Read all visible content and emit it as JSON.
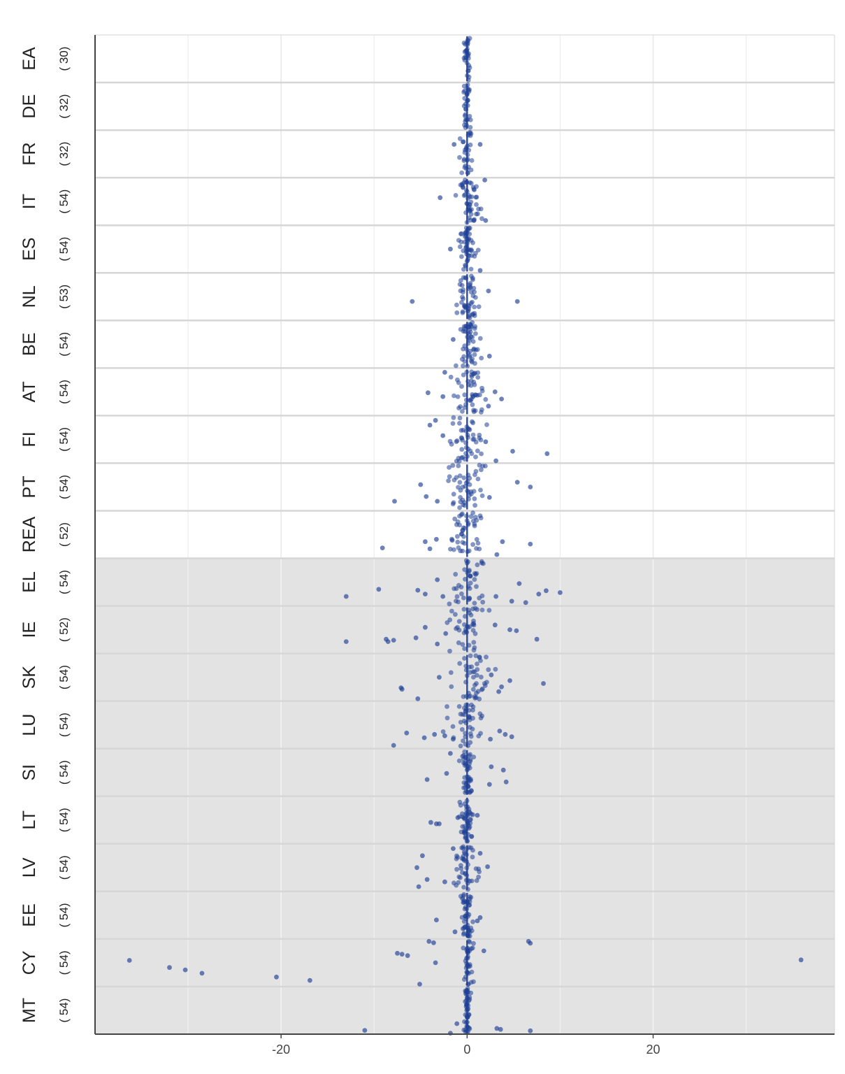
{
  "colors": {
    "point": "#1f3f95",
    "zero_line": "#1f3f95",
    "shaded_panel": "#e3e3e3",
    "grid_on_white": "#e9e9e9",
    "grid_on_gray": "#f3f3f3",
    "panel_separator": "#d6d6d6",
    "axis": "#444444"
  },
  "chart_data": {
    "type": "scatter",
    "orientation": "horizontal strips",
    "title": "",
    "xlabel": "",
    "ylabel": "",
    "xlim": [
      -40,
      39.5
    ],
    "x_ticks": [
      -20,
      0,
      20
    ],
    "x_tick_labels": [
      "-20",
      "0",
      "20"
    ],
    "grid": true,
    "legend": "none",
    "shaded_from_group": "EL",
    "groups": [
      {
        "label": "EA",
        "count": "( 30)",
        "outliers": []
      },
      {
        "label": "DE",
        "count": "( 32)",
        "outliers": []
      },
      {
        "label": "FR",
        "count": "( 32)",
        "outliers": [
          [
            -1.4,
            0.3
          ],
          [
            1.4,
            0.3
          ]
        ]
      },
      {
        "label": "IT",
        "count": "( 54)",
        "outliers": [
          [
            -2.9,
            0.42
          ],
          [
            1.9,
            0.05
          ],
          [
            2.0,
            0.9
          ]
        ]
      },
      {
        "label": "ES",
        "count": "( 54)",
        "outliers": [
          [
            -1.8,
            0.5
          ],
          [
            1.4,
            0.95
          ]
        ]
      },
      {
        "label": "NL",
        "count": "( 53)",
        "outliers": [
          [
            -5.9,
            0.6
          ],
          [
            5.4,
            0.6
          ],
          [
            2.3,
            0.38
          ]
        ]
      },
      {
        "label": "BE",
        "count": "( 54)",
        "outliers": [
          [
            -1.5,
            0.4
          ],
          [
            2.4,
            0.75
          ]
        ]
      },
      {
        "label": "AT",
        "count": "( 54)",
        "outliers": [
          [
            -4.2,
            0.52
          ],
          [
            -2.4,
            0.09
          ],
          [
            -2.6,
            0.6
          ],
          [
            3.7,
            0.65
          ],
          [
            2.3,
            0.8
          ],
          [
            3.0,
            0.5
          ]
        ]
      },
      {
        "label": "FI",
        "count": "( 54)",
        "outliers": [
          [
            8.6,
            0.8
          ],
          [
            4.9,
            0.75
          ],
          [
            -3.4,
            0.1
          ],
          [
            -4.0,
            0.2
          ],
          [
            -2.6,
            0.42
          ],
          [
            3.1,
            0.95
          ],
          [
            2.0,
            0.55
          ]
        ]
      },
      {
        "label": "PT",
        "count": "( 54)",
        "outliers": [
          [
            -7.8,
            0.8
          ],
          [
            -5.0,
            0.45
          ],
          [
            -4.4,
            0.7
          ],
          [
            5.4,
            0.4
          ],
          [
            6.8,
            0.5
          ],
          [
            2.4,
            0.72
          ],
          [
            -3.2,
            0.8
          ]
        ]
      },
      {
        "label": "REA",
        "count": "( 52)",
        "outliers": [
          [
            -9.1,
            0.78
          ],
          [
            -4.5,
            0.65
          ],
          [
            6.8,
            0.7
          ],
          [
            3.8,
            0.65
          ],
          [
            3.2,
            0.92
          ],
          [
            -3.3,
            0.6
          ],
          [
            -4.0,
            0.8
          ],
          [
            -1.6,
            0.62
          ]
        ]
      },
      {
        "label": "EL",
        "count": "( 54)",
        "outliers": [
          [
            -13.0,
            0.8
          ],
          [
            -9.5,
            0.65
          ],
          [
            -5.3,
            0.67
          ],
          [
            -3.2,
            0.45
          ],
          [
            10.0,
            0.72
          ],
          [
            8.5,
            0.68
          ],
          [
            7.7,
            0.75
          ],
          [
            6.3,
            0.93
          ],
          [
            4.8,
            0.9
          ],
          [
            5.6,
            0.53
          ],
          [
            3.1,
            0.8
          ],
          [
            -2.6,
            0.8
          ],
          [
            -4.5,
            0.75
          ]
        ]
      },
      {
        "label": "IE",
        "count": "( 52)",
        "outliers": [
          [
            -13.0,
            0.75
          ],
          [
            -8.5,
            0.75
          ],
          [
            -8.7,
            0.7
          ],
          [
            -7.9,
            0.72
          ],
          [
            -5.5,
            0.67
          ],
          [
            -2.3,
            0.58
          ],
          [
            4.6,
            0.5
          ],
          [
            5.3,
            0.52
          ],
          [
            7.5,
            0.7
          ],
          [
            3.0,
            0.4
          ],
          [
            -3.2,
            0.8
          ],
          [
            -4.5,
            0.45
          ]
        ]
      },
      {
        "label": "SK",
        "count": "( 54)",
        "outliers": [
          [
            -7.0,
            0.75
          ],
          [
            -7.1,
            0.72
          ],
          [
            -5.3,
            0.95
          ],
          [
            -3.0,
            0.5
          ],
          [
            8.2,
            0.63
          ],
          [
            4.6,
            0.57
          ],
          [
            3.7,
            0.7
          ],
          [
            3.4,
            0.8
          ],
          [
            2.6,
            0.45
          ]
        ]
      },
      {
        "label": "LU",
        "count": "( 54)",
        "outliers": [
          [
            -7.9,
            0.93
          ],
          [
            -6.5,
            0.67
          ],
          [
            -4.6,
            0.77
          ],
          [
            -3.5,
            0.7
          ],
          [
            -2.4,
            0.73
          ],
          [
            4.8,
            0.75
          ],
          [
            3.5,
            0.63
          ],
          [
            4.1,
            0.7
          ],
          [
            -1.5,
            0.8
          ],
          [
            2.5,
            0.8
          ]
        ]
      },
      {
        "label": "SI",
        "count": "( 54)",
        "outliers": [
          [
            -4.3,
            0.65
          ],
          [
            -2.2,
            0.52
          ],
          [
            4.2,
            0.7
          ],
          [
            3.9,
            0.45
          ],
          [
            2.6,
            0.38
          ],
          [
            2.4,
            0.75
          ],
          [
            -1.8,
            0.1
          ]
        ]
      },
      {
        "label": "LT",
        "count": "( 54)",
        "outliers": [
          [
            -3.9,
            0.55
          ],
          [
            -3.3,
            0.58
          ],
          [
            -3.0,
            0.58
          ],
          [
            1.1,
            0.4
          ],
          [
            -1.0,
            0.45
          ]
        ]
      },
      {
        "label": "LV",
        "count": "( 54)",
        "outliers": [
          [
            -4.8,
            0.25
          ],
          [
            -5.4,
            0.5
          ],
          [
            -5.2,
            0.9
          ],
          [
            -4.3,
            0.75
          ],
          [
            -2.4,
            0.8
          ],
          [
            2.2,
            0.48
          ],
          [
            -1.5,
            0.1
          ],
          [
            1.4,
            0.2
          ]
        ]
      },
      {
        "label": "EE",
        "count": "( 54)",
        "outliers": [
          [
            -3.3,
            0.6
          ],
          [
            -1.3,
            0.85
          ],
          [
            1.4,
            0.55
          ],
          [
            1.1,
            0.62
          ],
          [
            -0.5,
            0.15
          ]
        ]
      },
      {
        "label": "CY",
        "count": "( 54)",
        "outliers": [
          [
            -36.3,
            0.45
          ],
          [
            -32.0,
            0.6
          ],
          [
            -30.3,
            0.65
          ],
          [
            -28.5,
            0.72
          ],
          [
            -20.5,
            0.8
          ],
          [
            -16.9,
            0.87
          ],
          [
            -7.5,
            0.3
          ],
          [
            -7.0,
            0.32
          ],
          [
            -6.4,
            0.35
          ],
          [
            -5.1,
            0.95
          ],
          [
            -3.4,
            0.5
          ],
          [
            35.9,
            0.44
          ],
          [
            6.6,
            0.05
          ],
          [
            6.8,
            0.09
          ],
          [
            1.8,
            0.25
          ],
          [
            -4.1,
            0.05
          ],
          [
            -3.6,
            0.08
          ]
        ]
      },
      {
        "label": "MT",
        "count": "( 54)",
        "outliers": [
          [
            -11.0,
            0.92
          ],
          [
            -1.8,
            0.98
          ],
          [
            3.2,
            0.88
          ],
          [
            3.6,
            0.9
          ],
          [
            6.8,
            0.93
          ],
          [
            -1.1,
            0.78
          ]
        ]
      }
    ]
  }
}
